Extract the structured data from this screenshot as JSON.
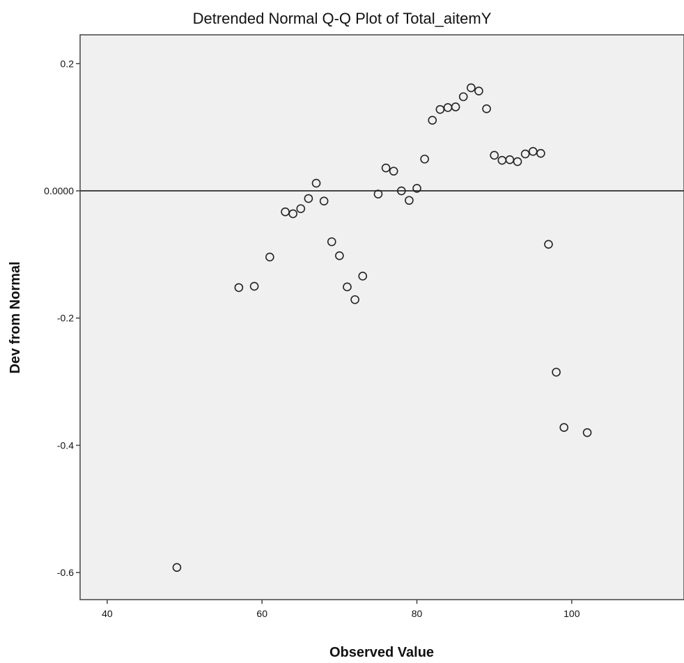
{
  "chart_data": {
    "type": "scatter",
    "title": "Detrended Normal Q-Q Plot of Total_aitemY",
    "xlabel": "Observed Value",
    "ylabel": "Dev from Normal",
    "xlim": [
      36.5,
      114.5
    ],
    "ylim": [
      -0.6426,
      0.2453
    ],
    "x_ticks": [
      40,
      60,
      80,
      100
    ],
    "x_tick_labels": [
      "40",
      "60",
      "80",
      "100"
    ],
    "y_ticks": [
      0.2,
      0.0,
      -0.2,
      -0.4,
      -0.6
    ],
    "y_tick_labels": [
      "0.2",
      "0.0000",
      "-0.2",
      "-0.4",
      "-0.6"
    ],
    "reference_line_y": 0.0,
    "grid": false,
    "plot_background": "#f0f0f0",
    "marker_color": "#222222",
    "points": [
      {
        "x": 49,
        "y": -0.592
      },
      {
        "x": 57,
        "y": -0.152
      },
      {
        "x": 59,
        "y": -0.15
      },
      {
        "x": 61,
        "y": -0.104
      },
      {
        "x": 63,
        "y": -0.033
      },
      {
        "x": 64,
        "y": -0.036
      },
      {
        "x": 65,
        "y": -0.028
      },
      {
        "x": 66,
        "y": -0.012
      },
      {
        "x": 67,
        "y": 0.012
      },
      {
        "x": 68,
        "y": -0.016
      },
      {
        "x": 69,
        "y": -0.08
      },
      {
        "x": 70,
        "y": -0.102
      },
      {
        "x": 71,
        "y": -0.151
      },
      {
        "x": 72,
        "y": -0.171
      },
      {
        "x": 73,
        "y": -0.134
      },
      {
        "x": 75,
        "y": -0.005
      },
      {
        "x": 76,
        "y": 0.036
      },
      {
        "x": 77,
        "y": 0.031
      },
      {
        "x": 78,
        "y": 0.0
      },
      {
        "x": 79,
        "y": -0.015
      },
      {
        "x": 80,
        "y": 0.004
      },
      {
        "x": 81,
        "y": 0.05
      },
      {
        "x": 82,
        "y": 0.111
      },
      {
        "x": 83,
        "y": 0.128
      },
      {
        "x": 84,
        "y": 0.131
      },
      {
        "x": 85,
        "y": 0.132
      },
      {
        "x": 86,
        "y": 0.148
      },
      {
        "x": 87,
        "y": 0.162
      },
      {
        "x": 88,
        "y": 0.157
      },
      {
        "x": 89,
        "y": 0.129
      },
      {
        "x": 90,
        "y": 0.056
      },
      {
        "x": 91,
        "y": 0.048
      },
      {
        "x": 92,
        "y": 0.049
      },
      {
        "x": 93,
        "y": 0.046
      },
      {
        "x": 94,
        "y": 0.058
      },
      {
        "x": 95,
        "y": 0.062
      },
      {
        "x": 96,
        "y": 0.059
      },
      {
        "x": 97,
        "y": -0.084
      },
      {
        "x": 98,
        "y": -0.285
      },
      {
        "x": 99,
        "y": -0.372
      },
      {
        "x": 102,
        "y": -0.38
      }
    ]
  }
}
